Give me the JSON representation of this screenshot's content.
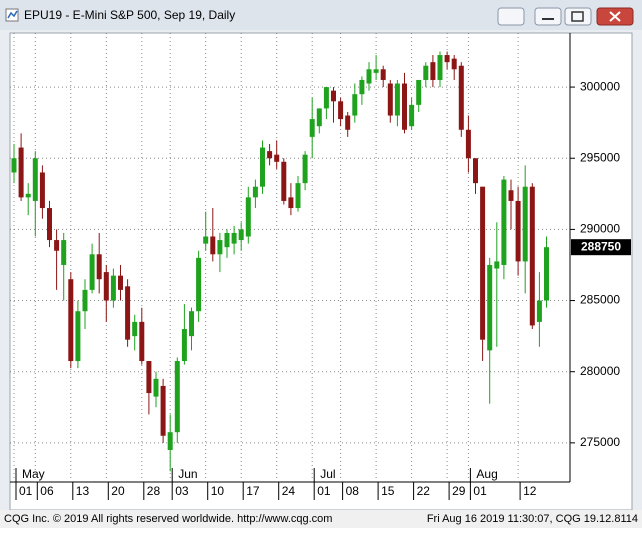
{
  "window": {
    "title": "EPU19 - E-Mini S&P 500, Sep 19, Daily"
  },
  "footer": {
    "left": "CQG Inc. © 2019 All rights reserved worldwide. http://www.cqg.com",
    "right": "Fri Aug 16 2019 11:30:07, CQG 19.12.8114"
  },
  "chart_data": {
    "type": "candlestick",
    "categories": [
      "01",
      null,
      null,
      "06",
      null,
      null,
      null,
      null,
      "13",
      null,
      null,
      null,
      null,
      "20",
      null,
      null,
      null,
      null,
      "28",
      null,
      null,
      null,
      "03",
      null,
      null,
      null,
      null,
      "10",
      null,
      null,
      null,
      null,
      "17",
      null,
      null,
      null,
      null,
      "24",
      null,
      null,
      null,
      null,
      "01",
      null,
      null,
      null,
      "08",
      null,
      null,
      null,
      null,
      "15",
      null,
      null,
      null,
      null,
      "22",
      null,
      null,
      null,
      null,
      "29",
      null,
      null,
      "01",
      null,
      null,
      null,
      null,
      null,
      null,
      "12",
      null,
      null,
      null,
      null
    ],
    "months": [
      "May",
      null,
      null,
      null,
      null,
      null,
      null,
      null,
      null,
      null,
      null,
      null,
      null,
      null,
      null,
      null,
      null,
      null,
      null,
      null,
      null,
      null,
      "Jun",
      null,
      null,
      null,
      null,
      null,
      null,
      null,
      null,
      null,
      null,
      null,
      null,
      null,
      null,
      null,
      null,
      null,
      null,
      null,
      "Jul",
      null,
      null,
      null,
      null,
      null,
      null,
      null,
      null,
      null,
      null,
      null,
      null,
      null,
      null,
      null,
      null,
      null,
      null,
      null,
      null,
      null,
      "Aug",
      null,
      null,
      null,
      null,
      null,
      null,
      null,
      null,
      null,
      null,
      null
    ],
    "open": [
      294000,
      295750,
      292250,
      292000,
      294000,
      291500,
      289250,
      287500,
      286500,
      280750,
      284250,
      285750,
      288250,
      287000,
      285000,
      286750,
      286000,
      282500,
      283500,
      280750,
      278250,
      279000,
      274500,
      275750,
      280750,
      282500,
      284250,
      289000,
      289500,
      288250,
      288750,
      289000,
      289250,
      289500,
      292250,
      293000,
      295500,
      295250,
      294750,
      292250,
      291500,
      293250,
      296500,
      297250,
      298500,
      299750,
      299000,
      298000,
      298000,
      299500,
      300250,
      301000,
      301250,
      300250,
      298000,
      300250,
      297250,
      298750,
      300500,
      301750,
      300500,
      302250,
      302000,
      301500,
      297000,
      295000,
      293000,
      281500,
      287250,
      287500,
      292750,
      292000,
      287750,
      293000,
      283500,
      285000
    ],
    "high": [
      296000,
      296750,
      293250,
      295500,
      294500,
      292000,
      290000,
      289750,
      287000,
      285000,
      286500,
      289000,
      289750,
      287500,
      287250,
      287500,
      286500,
      284000,
      284500,
      280750,
      280000,
      279500,
      277000,
      281000,
      284750,
      284500,
      288500,
      291250,
      291500,
      289750,
      290000,
      290250,
      290500,
      293000,
      293500,
      296250,
      296000,
      296250,
      295000,
      293250,
      293750,
      295500,
      299250,
      298500,
      300000,
      300000,
      299250,
      298250,
      300250,
      300750,
      301750,
      302250,
      301500,
      300500,
      300500,
      301000,
      299250,
      300500,
      301750,
      302250,
      302500,
      302500,
      302250,
      301750,
      298000,
      295000,
      293000,
      288000,
      290500,
      293750,
      293500,
      293000,
      294500,
      293250,
      287000,
      289500
    ],
    "low": [
      293250,
      292000,
      291000,
      289500,
      290750,
      288750,
      285750,
      285000,
      280250,
      280250,
      283000,
      285500,
      285500,
      283500,
      284500,
      285000,
      281750,
      281500,
      280500,
      277000,
      277500,
      275000,
      273000,
      275000,
      280500,
      281500,
      283500,
      288500,
      287750,
      287000,
      288000,
      288250,
      288500,
      289000,
      291500,
      292500,
      294500,
      294250,
      291750,
      291000,
      291250,
      292750,
      295000,
      296750,
      297750,
      297500,
      297250,
      296500,
      297500,
      298750,
      299750,
      300500,
      300000,
      297500,
      297250,
      296750,
      297000,
      298250,
      300000,
      300000,
      300000,
      301250,
      300500,
      296500,
      294000,
      292500,
      280750,
      277750,
      281750,
      286500,
      290000,
      286750,
      285500,
      283000,
      281750,
      284500
    ],
    "close": [
      295000,
      292250,
      292500,
      295000,
      291500,
      289250,
      288500,
      289250,
      280750,
      284250,
      285750,
      288250,
      286500,
      285000,
      286750,
      285750,
      282250,
      283500,
      280750,
      278500,
      279500,
      275500,
      275750,
      280750,
      283000,
      284250,
      288000,
      289500,
      288250,
      289250,
      289750,
      289750,
      290000,
      292250,
      293000,
      295750,
      295000,
      294750,
      292000,
      291500,
      293250,
      295250,
      297750,
      298500,
      300000,
      299000,
      297750,
      297000,
      299500,
      300500,
      301250,
      301250,
      300500,
      298000,
      300250,
      297000,
      298750,
      300500,
      301500,
      300500,
      302250,
      301750,
      301250,
      297000,
      295000,
      293250,
      282250,
      287500,
      287750,
      293500,
      292000,
      287750,
      293000,
      283250,
      285000,
      288750
    ],
    "up_color": "#1fa31f",
    "down_color": "#8c1515",
    "ylim": [
      272250,
      303800
    ],
    "yticks": [
      275000,
      280000,
      285000,
      290000,
      295000,
      300000
    ],
    "grid": true
  }
}
